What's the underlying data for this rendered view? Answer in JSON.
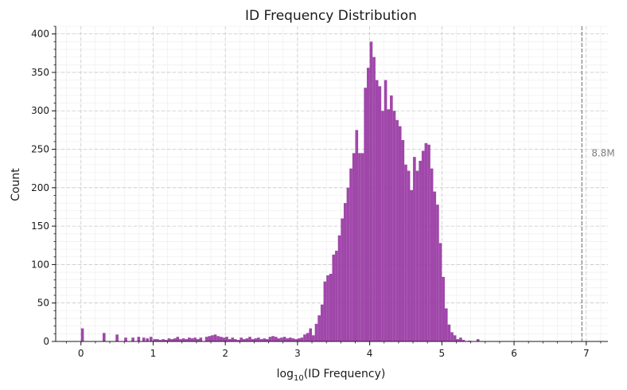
{
  "chart_data": {
    "type": "bar",
    "title": "ID Frequency Distribution",
    "xlabel": "log10(ID Frequency)",
    "xlabel_parts": {
      "base": "log",
      "sub": "10",
      "rest": "(ID Frequency)"
    },
    "ylabel": "Count",
    "xlim": [
      -0.35,
      7.3
    ],
    "ylim": [
      0,
      410
    ],
    "xticks": [
      0,
      1,
      2,
      3,
      4,
      5,
      6,
      7
    ],
    "yticks": [
      0,
      50,
      100,
      150,
      200,
      250,
      300,
      350,
      400
    ],
    "grid": true,
    "bar_color": "#9b3da5",
    "bin_width": 0.04,
    "bins": [
      [
        0.0,
        17
      ],
      [
        0.3,
        11
      ],
      [
        0.48,
        9
      ],
      [
        0.6,
        5
      ],
      [
        0.7,
        5
      ],
      [
        0.78,
        6
      ],
      [
        0.85,
        5
      ],
      [
        0.9,
        4
      ],
      [
        0.95,
        6
      ],
      [
        1.0,
        3
      ],
      [
        1.04,
        3
      ],
      [
        1.08,
        2
      ],
      [
        1.12,
        3
      ],
      [
        1.16,
        2
      ],
      [
        1.2,
        4
      ],
      [
        1.24,
        3
      ],
      [
        1.28,
        4
      ],
      [
        1.32,
        6
      ],
      [
        1.36,
        3
      ],
      [
        1.4,
        4
      ],
      [
        1.44,
        3
      ],
      [
        1.48,
        5
      ],
      [
        1.52,
        4
      ],
      [
        1.56,
        5
      ],
      [
        1.6,
        3
      ],
      [
        1.64,
        5
      ],
      [
        1.72,
        6
      ],
      [
        1.76,
        7
      ],
      [
        1.8,
        8
      ],
      [
        1.84,
        9
      ],
      [
        1.88,
        7
      ],
      [
        1.92,
        6
      ],
      [
        1.96,
        5
      ],
      [
        2.0,
        6
      ],
      [
        2.04,
        3
      ],
      [
        2.08,
        5
      ],
      [
        2.12,
        3
      ],
      [
        2.16,
        2
      ],
      [
        2.2,
        5
      ],
      [
        2.24,
        3
      ],
      [
        2.28,
        4
      ],
      [
        2.32,
        6
      ],
      [
        2.36,
        3
      ],
      [
        2.4,
        4
      ],
      [
        2.44,
        5
      ],
      [
        2.48,
        3
      ],
      [
        2.52,
        4
      ],
      [
        2.56,
        3
      ],
      [
        2.6,
        6
      ],
      [
        2.64,
        7
      ],
      [
        2.68,
        6
      ],
      [
        2.72,
        4
      ],
      [
        2.76,
        5
      ],
      [
        2.8,
        6
      ],
      [
        2.84,
        4
      ],
      [
        2.88,
        5
      ],
      [
        2.92,
        4
      ],
      [
        2.96,
        3
      ],
      [
        3.0,
        4
      ],
      [
        3.04,
        5
      ],
      [
        3.08,
        9
      ],
      [
        3.12,
        11
      ],
      [
        3.16,
        17
      ],
      [
        3.2,
        8
      ],
      [
        3.24,
        23
      ],
      [
        3.28,
        34
      ],
      [
        3.32,
        48
      ],
      [
        3.36,
        78
      ],
      [
        3.4,
        86
      ],
      [
        3.44,
        88
      ],
      [
        3.48,
        113
      ],
      [
        3.52,
        118
      ],
      [
        3.56,
        138
      ],
      [
        3.6,
        160
      ],
      [
        3.64,
        180
      ],
      [
        3.68,
        200
      ],
      [
        3.72,
        225
      ],
      [
        3.76,
        245
      ],
      [
        3.8,
        275
      ],
      [
        3.84,
        245
      ],
      [
        3.88,
        245
      ],
      [
        3.92,
        330
      ],
      [
        3.96,
        356
      ],
      [
        4.0,
        390
      ],
      [
        4.04,
        370
      ],
      [
        4.08,
        340
      ],
      [
        4.12,
        332
      ],
      [
        4.16,
        300
      ],
      [
        4.2,
        340
      ],
      [
        4.24,
        302
      ],
      [
        4.28,
        320
      ],
      [
        4.32,
        300
      ],
      [
        4.36,
        288
      ],
      [
        4.4,
        280
      ],
      [
        4.44,
        262
      ],
      [
        4.48,
        230
      ],
      [
        4.52,
        222
      ],
      [
        4.56,
        197
      ],
      [
        4.6,
        240
      ],
      [
        4.64,
        222
      ],
      [
        4.68,
        235
      ],
      [
        4.72,
        248
      ],
      [
        4.76,
        258
      ],
      [
        4.8,
        256
      ],
      [
        4.84,
        225
      ],
      [
        4.88,
        195
      ],
      [
        4.92,
        178
      ],
      [
        4.96,
        128
      ],
      [
        5.0,
        84
      ],
      [
        5.04,
        43
      ],
      [
        5.08,
        22
      ],
      [
        5.12,
        12
      ],
      [
        5.16,
        8
      ],
      [
        5.2,
        3
      ],
      [
        5.24,
        5
      ],
      [
        5.28,
        2
      ],
      [
        5.36,
        1
      ],
      [
        5.48,
        3
      ]
    ],
    "reference_line": {
      "x": 6.94,
      "label": "8.8M",
      "color": "#7f7f7f"
    }
  }
}
